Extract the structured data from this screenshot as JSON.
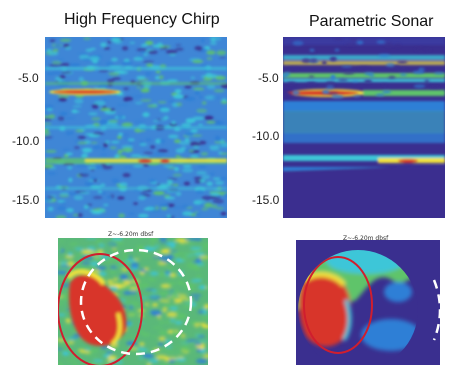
{
  "left": {
    "title": "High Frequency Chirp",
    "y_ticks": [
      "-5.0",
      "-10.0",
      "-15.0"
    ],
    "slice_label": "Z~-6.20m dbsf"
  },
  "right": {
    "title": "Parametric Sonar",
    "y_ticks": [
      "-5.0",
      "-10.0",
      "-15.0"
    ],
    "slice_label": "Z~-6.20m dbsf"
  },
  "colors": {
    "deep_blue": "#3a2f8f",
    "mid_blue": "#2f7fd6",
    "cyan": "#3cc6d8",
    "green": "#5ec46a",
    "yellow": "#f2e23a",
    "red": "#d8342a",
    "circle_red": "#d01e2e",
    "circle_white": "#ffffff"
  }
}
